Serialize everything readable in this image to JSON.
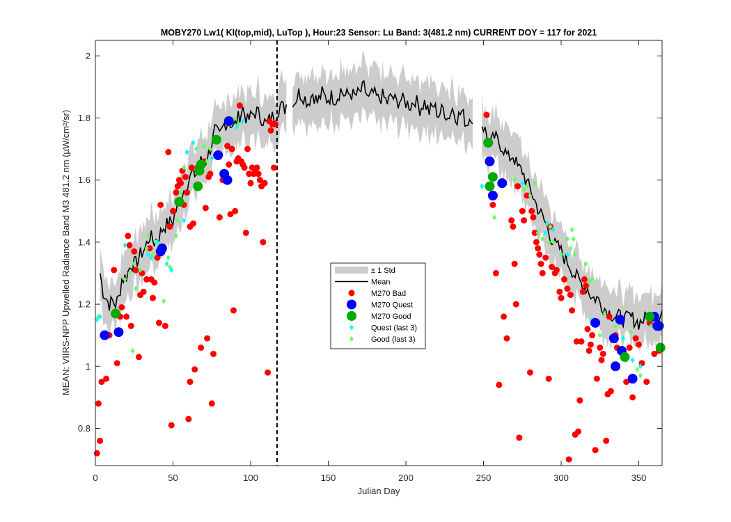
{
  "chart_data": {
    "type": "scatter",
    "title": "MOBY270   Lw1( Kl(top,mid), LuTop ),   Hour:23 Sensor: Lu Band: 3(481.2 nm)   CURRENT DOY = 117 for 2021",
    "xlabel": "Julian Day",
    "ylabel": "MEAN: VIIRS-NPP Upwelled Radiance Band M3 481.2 nm (µW/cm²/sr)",
    "xlim": [
      0,
      365
    ],
    "ylim": [
      0.68,
      2.05
    ],
    "xticks": [
      0,
      50,
      100,
      150,
      200,
      250,
      300,
      350
    ],
    "yticks": [
      0.8,
      1,
      1.2,
      1.4,
      1.6,
      1.8,
      2
    ],
    "ytick_labels": [
      "0.8",
      "1",
      "1.2",
      "1.4",
      "1.6",
      "1.8",
      "2"
    ],
    "current_doy": 117,
    "legend_position": "center",
    "legend": [
      {
        "label": "± 1 Std",
        "key": "std"
      },
      {
        "label": "Mean",
        "key": "mean"
      },
      {
        "label": "M270 Bad",
        "key": "bad"
      },
      {
        "label": "M270 Quest",
        "key": "quest"
      },
      {
        "label": "M270 Good",
        "key": "good"
      },
      {
        "label": "Quest (last 3)",
        "key": "quest_last3"
      },
      {
        "label": "Good (last 3)",
        "key": "good_last3"
      }
    ],
    "colors": {
      "std": "#cccccc",
      "mean": "#000000",
      "bad": "#ff0000",
      "quest": "#0000ff",
      "good": "#00aa00",
      "quest_last3": "#00ffff",
      "good_last3": "#66ff66",
      "current_line": "#000000"
    },
    "mean_anchors": [
      [
        3,
        1.3
      ],
      [
        5,
        1.24
      ],
      [
        7,
        1.22
      ],
      [
        9,
        1.2
      ],
      [
        11,
        1.21
      ],
      [
        13,
        1.2
      ],
      [
        15,
        1.22
      ],
      [
        17,
        1.28
      ],
      [
        20,
        1.29
      ],
      [
        23,
        1.33
      ],
      [
        26,
        1.33
      ],
      [
        29,
        1.36
      ],
      [
        32,
        1.38
      ],
      [
        35,
        1.42
      ],
      [
        38,
        1.4
      ],
      [
        41,
        1.42
      ],
      [
        44,
        1.45
      ],
      [
        47,
        1.46
      ],
      [
        50,
        1.47
      ],
      [
        53,
        1.52
      ],
      [
        56,
        1.56
      ],
      [
        59,
        1.58
      ],
      [
        62,
        1.62
      ],
      [
        65,
        1.62
      ],
      [
        68,
        1.66
      ],
      [
        71,
        1.66
      ],
      [
        74,
        1.7
      ],
      [
        77,
        1.76
      ],
      [
        80,
        1.74
      ],
      [
        83,
        1.78
      ],
      [
        86,
        1.79
      ],
      [
        89,
        1.77
      ],
      [
        92,
        1.8
      ],
      [
        95,
        1.83
      ],
      [
        98,
        1.79
      ],
      [
        101,
        1.81
      ],
      [
        104,
        1.82
      ],
      [
        107,
        1.8
      ],
      [
        110,
        1.78
      ],
      [
        113,
        1.8
      ],
      [
        116,
        1.81
      ],
      [
        119,
        1.84
      ],
      [
        122,
        1.83
      ],
      [
        125,
        1.87
      ],
      [
        128,
        1.85
      ],
      [
        131,
        1.88
      ],
      [
        134,
        1.87
      ],
      [
        137,
        1.85
      ],
      [
        140,
        1.88
      ],
      [
        143,
        1.85
      ],
      [
        146,
        1.88
      ],
      [
        149,
        1.86
      ],
      [
        152,
        1.87
      ],
      [
        155,
        1.86
      ],
      [
        158,
        1.89
      ],
      [
        161,
        1.87
      ],
      [
        164,
        1.88
      ],
      [
        167,
        1.87
      ],
      [
        170,
        1.88
      ],
      [
        173,
        1.9
      ],
      [
        176,
        1.86
      ],
      [
        179,
        1.88
      ],
      [
        182,
        1.86
      ],
      [
        185,
        1.87
      ],
      [
        188,
        1.85
      ],
      [
        191,
        1.87
      ],
      [
        194,
        1.85
      ],
      [
        197,
        1.86
      ],
      [
        200,
        1.85
      ],
      [
        203,
        1.84
      ],
      [
        206,
        1.86
      ],
      [
        209,
        1.83
      ],
      [
        212,
        1.85
      ],
      [
        215,
        1.82
      ],
      [
        218,
        1.84
      ],
      [
        221,
        1.81
      ],
      [
        224,
        1.83
      ],
      [
        227,
        1.8
      ],
      [
        230,
        1.83
      ],
      [
        233,
        1.8
      ],
      [
        236,
        1.82
      ],
      [
        239,
        1.78
      ],
      [
        242,
        1.81
      ],
      [
        245,
        1.78
      ],
      [
        248,
        1.79
      ],
      [
        251,
        1.76
      ],
      [
        254,
        1.71
      ],
      [
        257,
        1.74
      ],
      [
        260,
        1.72
      ],
      [
        263,
        1.7
      ],
      [
        266,
        1.67
      ],
      [
        269,
        1.68
      ],
      [
        272,
        1.64
      ],
      [
        275,
        1.63
      ],
      [
        278,
        1.59
      ],
      [
        281,
        1.56
      ],
      [
        284,
        1.52
      ],
      [
        287,
        1.49
      ],
      [
        290,
        1.46
      ],
      [
        293,
        1.42
      ],
      [
        296,
        1.39
      ],
      [
        299,
        1.38
      ],
      [
        302,
        1.35
      ],
      [
        305,
        1.33
      ],
      [
        308,
        1.3
      ],
      [
        311,
        1.28
      ],
      [
        314,
        1.26
      ],
      [
        317,
        1.25
      ],
      [
        320,
        1.22
      ],
      [
        323,
        1.22
      ],
      [
        326,
        1.2
      ],
      [
        329,
        1.18
      ],
      [
        332,
        1.17
      ],
      [
        335,
        1.16
      ],
      [
        338,
        1.16
      ],
      [
        341,
        1.15
      ],
      [
        344,
        1.16
      ],
      [
        347,
        1.15
      ],
      [
        350,
        1.14
      ],
      [
        353,
        1.15
      ],
      [
        356,
        1.16
      ],
      [
        359,
        1.15
      ],
      [
        362,
        1.16
      ],
      [
        365,
        1.18
      ]
    ],
    "mean_gaps": [
      [
        124,
        126
      ],
      [
        244,
        248
      ]
    ],
    "std_width": 0.055,
    "bad": [
      [
        1,
        0.72
      ],
      [
        2,
        0.88
      ],
      [
        3,
        0.76
      ],
      [
        4,
        0.95
      ],
      [
        7,
        0.96
      ],
      [
        9,
        1.1
      ],
      [
        12,
        1.31
      ],
      [
        14,
        1.01
      ],
      [
        16,
        1.16
      ],
      [
        17,
        1.19
      ],
      [
        20,
        1.16
      ],
      [
        21,
        1.42
      ],
      [
        22,
        1.39
      ],
      [
        23,
        1.13
      ],
      [
        25,
        1.37
      ],
      [
        26,
        1.31
      ],
      [
        28,
        1.03
      ],
      [
        29,
        1.23
      ],
      [
        30,
        1.3
      ],
      [
        31,
        1.24
      ],
      [
        33,
        1.28
      ],
      [
        35,
        1.38
      ],
      [
        36,
        1.28
      ],
      [
        37,
        1.22
      ],
      [
        38,
        1.27
      ],
      [
        40,
        1.35
      ],
      [
        41,
        1.14
      ],
      [
        42,
        1.52
      ],
      [
        45,
        1.13
      ],
      [
        47,
        1.69
      ],
      [
        48,
        1.45
      ],
      [
        49,
        0.81
      ],
      [
        50,
        1.5
      ],
      [
        52,
        1.56
      ],
      [
        53,
        1.58
      ],
      [
        54,
        1.6
      ],
      [
        55,
        1.59
      ],
      [
        56,
        1.63
      ],
      [
        57,
        1.52
      ],
      [
        58,
        1.61
      ],
      [
        59,
        1.56
      ],
      [
        60,
        0.83
      ],
      [
        61,
        1.45
      ],
      [
        61,
        0.95
      ],
      [
        62,
        1.64
      ],
      [
        63,
        1.46
      ],
      [
        64,
        0.99
      ],
      [
        66,
        1.64
      ],
      [
        68,
        1.06
      ],
      [
        70,
        1.66
      ],
      [
        71,
        1.51
      ],
      [
        72,
        1.09
      ],
      [
        73,
        1.61
      ],
      [
        74,
        1.62
      ],
      [
        75,
        0.88
      ],
      [
        76,
        1.04
      ],
      [
        80,
        1.48
      ],
      [
        82,
        1.6
      ],
      [
        85,
        1.71
      ],
      [
        86,
        1.65
      ],
      [
        87,
        1.49
      ],
      [
        88,
        1.7
      ],
      [
        89,
        1.18
      ],
      [
        90,
        1.5
      ],
      [
        91,
        1.66
      ],
      [
        92,
        1.67
      ],
      [
        93,
        1.84
      ],
      [
        94,
        1.66
      ],
      [
        95,
        1.65
      ],
      [
        96,
        1.64
      ],
      [
        97,
        1.43
      ],
      [
        98,
        1.7
      ],
      [
        99,
        1.62
      ],
      [
        100,
        1.59
      ],
      [
        101,
        1.64
      ],
      [
        102,
        1.62
      ],
      [
        103,
        1.63
      ],
      [
        104,
        1.64
      ],
      [
        105,
        1.62
      ],
      [
        106,
        1.6
      ],
      [
        107,
        1.58
      ],
      [
        108,
        1.4
      ],
      [
        109,
        1.59
      ],
      [
        111,
        0.98
      ],
      [
        112,
        1.79
      ],
      [
        113,
        1.76
      ],
      [
        114,
        1.78
      ],
      [
        115,
        1.64
      ],
      [
        116,
        1.78
      ],
      [
        252,
        1.81
      ],
      [
        256,
        1.52
      ],
      [
        258,
        1.3
      ],
      [
        260,
        0.94
      ],
      [
        263,
        1.16
      ],
      [
        265,
        1.09
      ],
      [
        268,
        1.47
      ],
      [
        269,
        1.45
      ],
      [
        270,
        1.33
      ],
      [
        271,
        1.2
      ],
      [
        272,
        1.58
      ],
      [
        273,
        0.77
      ],
      [
        275,
        1.5
      ],
      [
        276,
        1.47
      ],
      [
        278,
        1.55
      ],
      [
        280,
        0.98
      ],
      [
        281,
        1.5
      ],
      [
        282,
        1.48
      ],
      [
        283,
        1.43
      ],
      [
        284,
        1.4
      ],
      [
        285,
        1.38
      ],
      [
        286,
        1.36
      ],
      [
        287,
        1.33
      ],
      [
        288,
        1.3
      ],
      [
        290,
        1.35
      ],
      [
        292,
        0.96
      ],
      [
        293,
        1.45
      ],
      [
        294,
        1.32
      ],
      [
        296,
        1.3
      ],
      [
        297,
        1.31
      ],
      [
        299,
        1.24
      ],
      [
        300,
        1.22
      ],
      [
        302,
        1.28
      ],
      [
        304,
        1.25
      ],
      [
        305,
        0.7
      ],
      [
        306,
        1.23
      ],
      [
        307,
        1.18
      ],
      [
        309,
        0.78
      ],
      [
        310,
        1.08
      ],
      [
        311,
        0.79
      ],
      [
        312,
        0.89
      ],
      [
        313,
        1.08
      ],
      [
        314,
        1.24
      ],
      [
        315,
        1.28
      ],
      [
        316,
        1.26
      ],
      [
        317,
        1.12
      ],
      [
        318,
        1.05
      ],
      [
        319,
        1.07
      ],
      [
        320,
        1.1
      ],
      [
        322,
        0.73
      ],
      [
        323,
        0.96
      ],
      [
        325,
        1.06
      ],
      [
        326,
        1.02
      ],
      [
        327,
        1.04
      ],
      [
        329,
        0.76
      ],
      [
        330,
        0.91
      ],
      [
        331,
        1.16
      ],
      [
        332,
        0.92
      ],
      [
        335,
        1.1
      ],
      [
        336,
        1.06
      ],
      [
        339,
        1.05
      ],
      [
        342,
        0.95
      ],
      [
        344,
        1.06
      ],
      [
        346,
        0.9
      ],
      [
        348,
        1.09
      ],
      [
        350,
        1.07
      ],
      [
        352,
        1.01
      ],
      [
        355,
        0.95
      ],
      [
        357,
        1.14
      ],
      [
        360,
        1.04
      ],
      [
        363,
        1.05
      ]
    ],
    "quest": [
      [
        6,
        1.1
      ],
      [
        15,
        1.11
      ],
      [
        42,
        1.37
      ],
      [
        43,
        1.38
      ],
      [
        79,
        1.68
      ],
      [
        83,
        1.62
      ],
      [
        85,
        1.6
      ],
      [
        86,
        1.79
      ],
      [
        254,
        1.66
      ],
      [
        256,
        1.55
      ],
      [
        262,
        1.59
      ],
      [
        322,
        1.14
      ],
      [
        334,
        1.09
      ],
      [
        335,
        1.0
      ],
      [
        338,
        1.15
      ],
      [
        339,
        1.05
      ],
      [
        346,
        0.96
      ],
      [
        360,
        1.16
      ],
      [
        362,
        1.13
      ],
      [
        363,
        1.13
      ]
    ],
    "good": [
      [
        13,
        1.17
      ],
      [
        54,
        1.53
      ],
      [
        66,
        1.58
      ],
      [
        67,
        1.63
      ],
      [
        68,
        1.65
      ],
      [
        78,
        1.73
      ],
      [
        253,
        1.72
      ],
      [
        254,
        1.58
      ],
      [
        256,
        1.61
      ],
      [
        341,
        1.03
      ],
      [
        357,
        1.16
      ],
      [
        364,
        1.06
      ]
    ],
    "quest_last3": [
      [
        1,
        1.15
      ],
      [
        3,
        1.16
      ],
      [
        19,
        1.39
      ],
      [
        34,
        1.36
      ],
      [
        36,
        1.35
      ],
      [
        40,
        1.4
      ],
      [
        46,
        1.33
      ],
      [
        49,
        1.31
      ],
      [
        57,
        1.47
      ],
      [
        59,
        1.69
      ],
      [
        63,
        1.72
      ],
      [
        75,
        1.67
      ],
      [
        91,
        1.77
      ],
      [
        95,
        1.79
      ],
      [
        249,
        1.58
      ],
      [
        275,
        1.59
      ],
      [
        290,
        1.43
      ],
      [
        291,
        1.46
      ],
      [
        295,
        1.44
      ],
      [
        304,
        1.36
      ],
      [
        320,
        1.15
      ],
      [
        340,
        1.09
      ],
      [
        346,
        1.02
      ],
      [
        351,
        1.0
      ]
    ],
    "good_last3": [
      [
        2,
        1.16
      ],
      [
        19,
        1.28
      ],
      [
        22,
        1.3
      ],
      [
        24,
        1.05
      ],
      [
        25,
        1.33
      ],
      [
        26,
        1.25
      ],
      [
        29,
        1.31
      ],
      [
        33,
        1.38
      ],
      [
        34,
        1.42
      ],
      [
        37,
        1.36
      ],
      [
        39,
        1.4
      ],
      [
        43,
        1.38
      ],
      [
        44,
        1.21
      ],
      [
        47,
        1.35
      ],
      [
        48,
        1.32
      ],
      [
        52,
        1.42
      ],
      [
        53,
        1.47
      ],
      [
        55,
        1.56
      ],
      [
        57,
        1.64
      ],
      [
        65,
        1.7
      ],
      [
        70,
        1.71
      ],
      [
        72,
        1.66
      ],
      [
        74,
        1.7
      ],
      [
        78,
        1.73
      ],
      [
        90,
        1.8
      ],
      [
        92,
        1.78
      ],
      [
        257,
        1.48
      ],
      [
        270,
        1.6
      ],
      [
        276,
        1.57
      ],
      [
        278,
        1.58
      ],
      [
        280,
        1.55
      ],
      [
        283,
        1.59
      ],
      [
        285,
        1.43
      ],
      [
        288,
        1.41
      ],
      [
        292,
        1.4
      ],
      [
        293,
        1.45
      ],
      [
        295,
        1.4
      ],
      [
        300,
        1.36
      ],
      [
        304,
        1.41
      ],
      [
        306,
        1.38
      ],
      [
        307,
        1.44
      ],
      [
        308,
        1.41
      ],
      [
        309,
        1.36
      ],
      [
        316,
        1.33
      ],
      [
        318,
        1.27
      ],
      [
        320,
        1.28
      ],
      [
        325,
        1.1
      ],
      [
        328,
        1.17
      ],
      [
        335,
        1.13
      ],
      [
        342,
        1.02
      ],
      [
        345,
        1.11
      ],
      [
        349,
        0.99
      ],
      [
        351,
        0.97
      ],
      [
        358,
        1.13
      ]
    ]
  }
}
